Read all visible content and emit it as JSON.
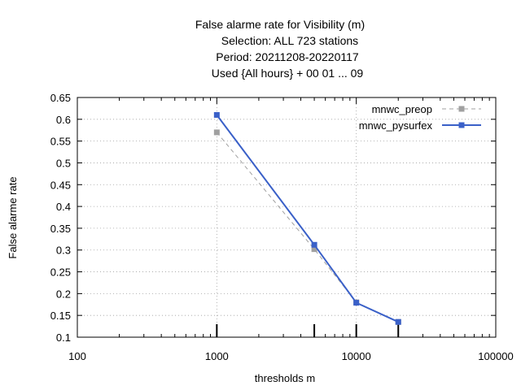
{
  "chart_data": {
    "type": "line",
    "title_lines": [
      "False alarme rate  for Visibility (m)",
      "Selection: ALL    723 stations",
      "Period: 20211208-20220117",
      "Used {All hours} + 00 01 ... 09"
    ],
    "xlabel": "thresholds m",
    "ylabel": "False alarme rate",
    "x_scale": "log",
    "xlim": [
      100,
      100000
    ],
    "ylim": [
      0.1,
      0.65
    ],
    "x_ticks": [
      100,
      1000,
      10000,
      100000
    ],
    "x_tick_labels": [
      "100",
      "1000",
      "10000",
      "100000"
    ],
    "y_ticks": [
      0.1,
      0.15,
      0.2,
      0.25,
      0.3,
      0.35,
      0.4,
      0.45,
      0.5,
      0.55,
      0.6,
      0.65
    ],
    "y_tick_labels": [
      "0.1",
      "0.15",
      "0.2",
      "0.25",
      "0.3",
      "0.35",
      "0.4",
      "0.45",
      "0.5",
      "0.55",
      "0.6",
      "0.65"
    ],
    "grid": true,
    "legend_position": "top-right",
    "threshold_markers": [
      1000,
      5000,
      10000,
      20000
    ],
    "series": [
      {
        "name": "mnwc_preop",
        "color": "#a0a0a0",
        "style": "dashed",
        "x": [
          1000,
          5000,
          10000,
          20000
        ],
        "y": [
          0.57,
          0.302,
          0.18,
          0.135
        ]
      },
      {
        "name": "mnwc_pysurfex",
        "color": "#3a60c8",
        "style": "solid",
        "x": [
          1000,
          5000,
          10000,
          20000
        ],
        "y": [
          0.61,
          0.312,
          0.179,
          0.135
        ]
      }
    ]
  }
}
